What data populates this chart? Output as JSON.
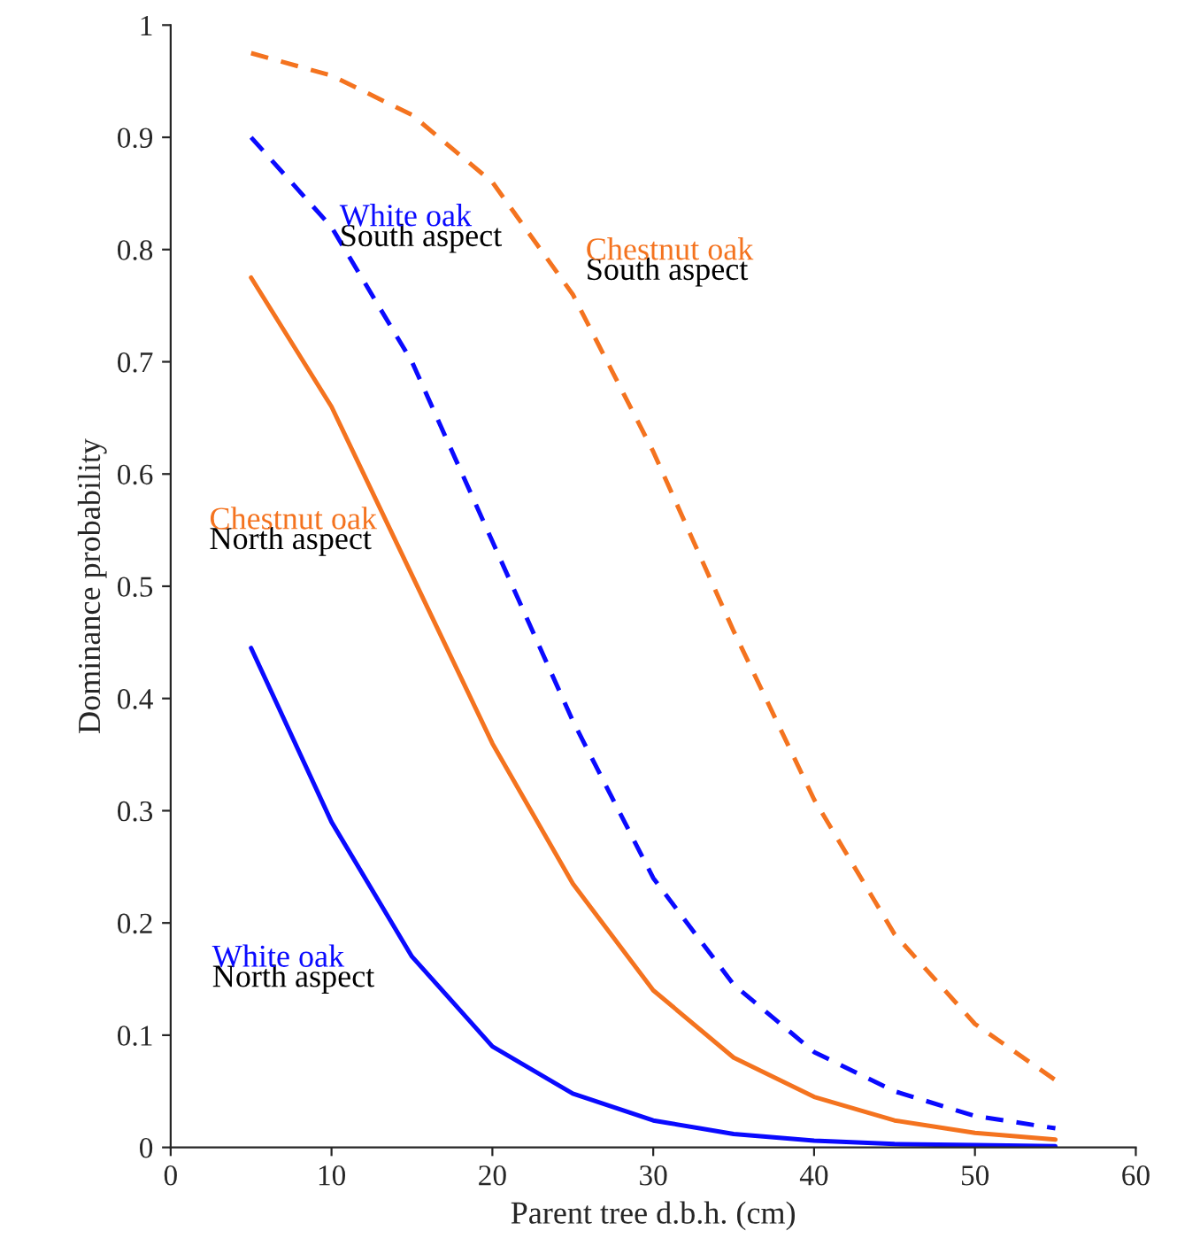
{
  "chart_data": {
    "type": "line",
    "xlabel": "Parent tree d.b.h. (cm)",
    "ylabel": "Dominance probability",
    "x": [
      5,
      10,
      15,
      20,
      25,
      30,
      35,
      40,
      45,
      50,
      55
    ],
    "series": [
      {
        "name": "White oak",
        "color": "#0a0aff",
        "line_style": "dashed",
        "values": [
          0.9,
          0.82,
          0.7,
          0.54,
          0.38,
          0.24,
          0.145,
          0.085,
          0.05,
          0.028,
          0.017
        ]
      },
      {
        "name": "Chestnut oak",
        "color": "#f4731f",
        "line_style": "dashed",
        "values": [
          0.975,
          0.955,
          0.92,
          0.86,
          0.76,
          0.62,
          0.46,
          0.31,
          0.19,
          0.11,
          0.06
        ]
      },
      {
        "name": "Chestnut oak",
        "color": "#f4731f",
        "line_style": "solid",
        "values": [
          0.775,
          0.66,
          0.51,
          0.36,
          0.235,
          0.14,
          0.08,
          0.045,
          0.024,
          0.013,
          0.007
        ]
      },
      {
        "name": "White oak",
        "color": "#0a0aff",
        "line_style": "solid",
        "values": [
          0.445,
          0.29,
          0.17,
          0.09,
          0.048,
          0.024,
          0.012,
          0.006,
          0.003,
          0.002,
          0.001
        ]
      }
    ],
    "annotations": [
      "South aspect",
      "South aspect",
      "North aspect",
      "North aspect"
    ],
    "xlim": [
      0,
      60
    ],
    "xticks": [
      0,
      10,
      20,
      30,
      40,
      50,
      60
    ],
    "ylim": [
      0,
      1
    ],
    "yticks": [
      0,
      0.1,
      0.2,
      0.3,
      0.4,
      0.5,
      0.6,
      0.7,
      0.8,
      0.9,
      1
    ],
    "grid": false,
    "legend": false,
    "marker": "none"
  }
}
